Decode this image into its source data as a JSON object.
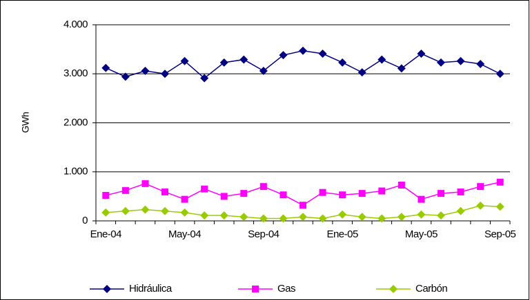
{
  "chart_data": {
    "type": "line",
    "y_label": "GWh",
    "categories": [
      "Ene-04",
      null,
      null,
      null,
      "May-04",
      null,
      null,
      null,
      "Sep-04",
      null,
      null,
      null,
      "Ene-05",
      null,
      null,
      null,
      "May-05",
      null,
      null,
      null,
      "Sep-05"
    ],
    "series": [
      {
        "name": "Hidráulica",
        "color": "#000080",
        "marker": "diamond",
        "values": [
          3120,
          2940,
          3060,
          3000,
          3260,
          2910,
          3230,
          3290,
          3060,
          3380,
          3470,
          3410,
          3230,
          3030,
          3290,
          3110,
          3410,
          3230,
          3260,
          3200,
          3000
        ]
      },
      {
        "name": "Gas",
        "color": "#ff00ff",
        "marker": "square",
        "values": [
          520,
          620,
          760,
          590,
          440,
          650,
          500,
          560,
          700,
          530,
          320,
          580,
          530,
          560,
          610,
          730,
          440,
          560,
          590,
          700,
          790
        ]
      },
      {
        "name": "Carbón",
        "color": "#99cc00",
        "marker": "diamond",
        "values": [
          170,
          200,
          230,
          200,
          170,
          110,
          110,
          80,
          50,
          50,
          80,
          50,
          130,
          80,
          50,
          80,
          130,
          110,
          200,
          310,
          290
        ]
      }
    ],
    "ylim": [
      0,
      4000
    ],
    "yticks": [
      0,
      {
        "value": 1000,
        "label": "1.000"
      },
      {
        "value": 2000,
        "label": "2.000"
      },
      {
        "value": 3000,
        "label": "3.000"
      },
      {
        "value": 4000,
        "label": "4.000"
      }
    ],
    "grid": true,
    "legend": "bottom"
  }
}
